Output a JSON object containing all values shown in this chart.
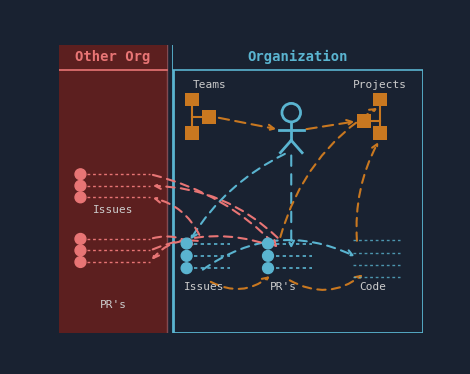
{
  "bg_color": "#192231",
  "left_panel_color": "#5c1f1f",
  "org_border_color": "#5ab4d0",
  "title_other_org": "Other Org",
  "title_org": "Organization",
  "title_color_other": "#e87575",
  "title_color_org": "#5ab4d0",
  "orange_color": "#c97820",
  "blue_color": "#5ab4d0",
  "pink_color": "#e87575",
  "blue_dot_color": "#5ab4d0",
  "teams_label": "Teams",
  "projects_label": "Projects",
  "issues_label_org": "Issues",
  "prs_label_org": "PR's",
  "code_label_org": "Code",
  "issues_label_other": "Issues",
  "prs_label_other": "PR's"
}
